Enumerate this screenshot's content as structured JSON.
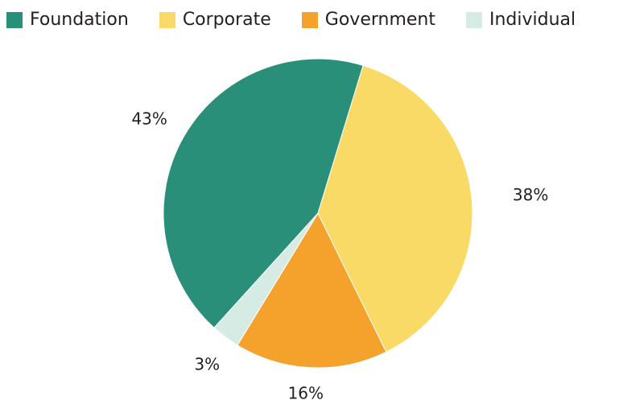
{
  "chart_data": {
    "type": "pie",
    "title": "",
    "legend_position": "top",
    "slices": [
      {
        "label": "Foundation",
        "value": 43,
        "value_label": "43%",
        "color": "#2a8f78"
      },
      {
        "label": "Corporate",
        "value": 38,
        "value_label": "38%",
        "color": "#f9da66"
      },
      {
        "label": "Government",
        "value": 16,
        "value_label": "16%",
        "color": "#f5a22d"
      },
      {
        "label": "Individual",
        "value": 3,
        "value_label": "3%",
        "color": "#d6ebe3"
      }
    ]
  }
}
